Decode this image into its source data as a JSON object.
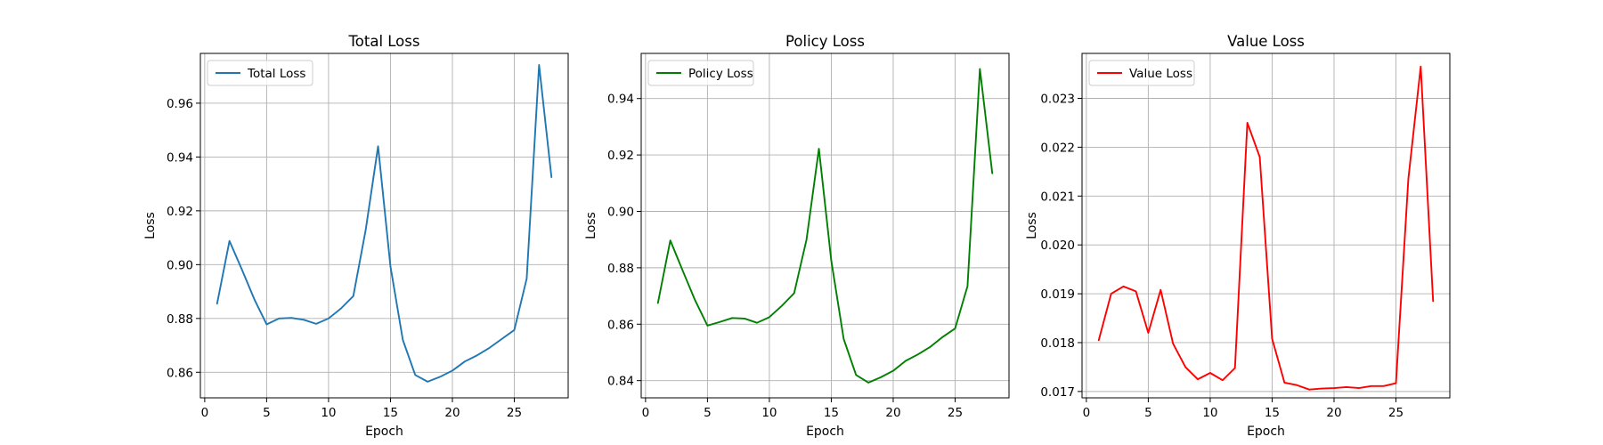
{
  "chart_data": [
    {
      "type": "line",
      "title": "Total Loss",
      "xlabel": "Epoch",
      "ylabel": "Loss",
      "grid": true,
      "legend": "top-left",
      "xlim": [
        -0.35,
        29.35
      ],
      "ylim": [
        0.8505,
        0.9785
      ],
      "xticks": [
        0,
        5,
        10,
        15,
        20,
        25
      ],
      "xtick_labels": [
        "0",
        "5",
        "10",
        "15",
        "20",
        "25"
      ],
      "yticks": [
        0.86,
        0.88,
        0.9,
        0.92,
        0.94,
        0.96
      ],
      "ytick_labels": [
        "0.86",
        "0.88",
        "0.90",
        "0.92",
        "0.94",
        "0.96"
      ],
      "series": [
        {
          "name": "Total Loss",
          "color": "#1f77b4",
          "x": [
            1,
            2,
            3,
            4,
            5,
            6,
            7,
            8,
            9,
            10,
            11,
            12,
            13,
            14,
            15,
            16,
            17,
            18,
            19,
            20,
            21,
            22,
            23,
            24,
            25,
            26,
            27,
            28
          ],
          "values": [
            0.8855,
            0.9088,
            0.8982,
            0.8872,
            0.8778,
            0.88,
            0.8802,
            0.8795,
            0.878,
            0.88,
            0.8837,
            0.8883,
            0.9129,
            0.944,
            0.8993,
            0.872,
            0.859,
            0.8565,
            0.8583,
            0.8606,
            0.864,
            0.8663,
            0.8691,
            0.8724,
            0.8757,
            0.8948,
            0.9742,
            0.9325
          ]
        }
      ]
    },
    {
      "type": "line",
      "title": "Policy Loss",
      "xlabel": "Epoch",
      "ylabel": "Loss",
      "grid": true,
      "legend": "top-left",
      "xlim": [
        -0.35,
        29.35
      ],
      "ylim": [
        0.8339,
        0.956
      ],
      "xticks": [
        0,
        5,
        10,
        15,
        20,
        25
      ],
      "xtick_labels": [
        "0",
        "5",
        "10",
        "15",
        "20",
        "25"
      ],
      "yticks": [
        0.84,
        0.86,
        0.88,
        0.9,
        0.92,
        0.94
      ],
      "ytick_labels": [
        "0.84",
        "0.86",
        "0.88",
        "0.90",
        "0.92",
        "0.94"
      ],
      "series": [
        {
          "name": "Policy Loss",
          "color": "#008000",
          "x": [
            1,
            2,
            3,
            4,
            5,
            6,
            7,
            8,
            9,
            10,
            11,
            12,
            13,
            14,
            15,
            16,
            17,
            18,
            19,
            20,
            21,
            22,
            23,
            24,
            25,
            26,
            27,
            28
          ],
          "values": [
            0.8675,
            0.8897,
            0.879,
            0.8685,
            0.8595,
            0.8608,
            0.8622,
            0.862,
            0.8605,
            0.8625,
            0.8665,
            0.871,
            0.89,
            0.9222,
            0.8825,
            0.8548,
            0.842,
            0.8393,
            0.8412,
            0.8435,
            0.847,
            0.8493,
            0.852,
            0.8555,
            0.8585,
            0.8735,
            0.9505,
            0.9135
          ]
        }
      ]
    },
    {
      "type": "line",
      "title": "Value Loss",
      "xlabel": "Epoch",
      "ylabel": "Loss",
      "grid": true,
      "legend": "top-left",
      "xlim": [
        -0.35,
        29.35
      ],
      "ylim": [
        0.01687,
        0.02392
      ],
      "xticks": [
        0,
        5,
        10,
        15,
        20,
        25
      ],
      "xtick_labels": [
        "0",
        "5",
        "10",
        "15",
        "20",
        "25"
      ],
      "yticks": [
        0.017,
        0.018,
        0.019,
        0.02,
        0.021,
        0.022,
        0.023
      ],
      "ytick_labels": [
        "0.017",
        "0.018",
        "0.019",
        "0.020",
        "0.021",
        "0.022",
        "0.023"
      ],
      "series": [
        {
          "name": "Value Loss",
          "color": "#ff0000",
          "x": [
            1,
            2,
            3,
            4,
            5,
            6,
            7,
            8,
            9,
            10,
            11,
            12,
            13,
            14,
            15,
            16,
            17,
            18,
            19,
            20,
            21,
            22,
            23,
            24,
            25,
            26,
            27,
            28
          ],
          "values": [
            0.01805,
            0.019,
            0.01915,
            0.01905,
            0.0182,
            0.01908,
            0.01798,
            0.0175,
            0.01725,
            0.01738,
            0.01723,
            0.01748,
            0.0225,
            0.0218,
            0.01808,
            0.01718,
            0.01713,
            0.01704,
            0.01706,
            0.01707,
            0.01709,
            0.01707,
            0.01711,
            0.01711,
            0.01717,
            0.02135,
            0.02365,
            0.01885
          ]
        }
      ]
    }
  ]
}
